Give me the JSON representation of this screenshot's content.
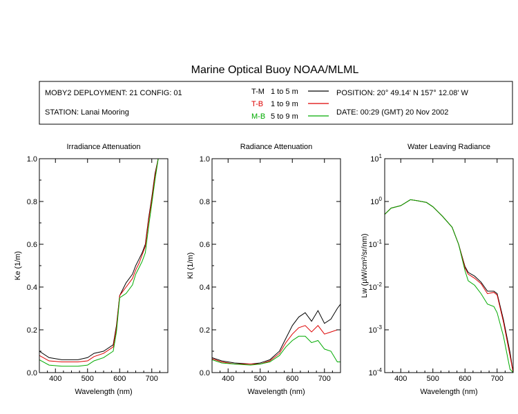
{
  "title": "Marine Optical Buoy NOAA/MLML",
  "info": {
    "deployment": "MOBY2 DEPLOYMENT: 21 CONFIG: 01",
    "station": "STATION: Lanai Mooring",
    "position": "POSITION: 20° 49.14' N   157° 12.08' W",
    "date": "DATE: 00:29 (GMT) 20 Nov 2002"
  },
  "legend": [
    {
      "code": "T-M",
      "range": "1 to 5  m",
      "color": "#000000"
    },
    {
      "code": "T-B",
      "range": "1 to 9  m",
      "color": "#dd0000"
    },
    {
      "code": "M-B",
      "range": "5 to 9  m",
      "color": "#00aa00"
    }
  ],
  "chart_data": [
    {
      "type": "line",
      "title": "Irradiance Attenuation",
      "xlabel": "Wavelength (nm)",
      "ylabel": "Ke  (1/m)",
      "xlim": [
        350,
        750
      ],
      "ylim": [
        0,
        1.0
      ],
      "xticks": [
        400,
        500,
        600,
        700
      ],
      "yticks": [
        0.0,
        0.2,
        0.4,
        0.6,
        0.8,
        1.0
      ],
      "yticklabels": [
        "0.0",
        "0.2",
        "0.4",
        "0.6",
        "0.8",
        "1.0"
      ],
      "x": [
        350,
        380,
        420,
        470,
        500,
        520,
        550,
        580,
        590,
        600,
        610,
        620,
        640,
        650,
        660,
        670,
        680,
        690,
        700,
        710,
        720
      ],
      "series": [
        {
          "name": "T-M",
          "color": "#000000",
          "values": [
            0.1,
            0.07,
            0.06,
            0.06,
            0.07,
            0.09,
            0.1,
            0.13,
            0.22,
            0.36,
            0.39,
            0.42,
            0.46,
            0.5,
            0.53,
            0.56,
            0.6,
            0.72,
            0.82,
            0.93,
            1.0
          ]
        },
        {
          "name": "T-B",
          "color": "#dd0000",
          "values": [
            0.08,
            0.055,
            0.05,
            0.05,
            0.055,
            0.075,
            0.09,
            0.12,
            0.21,
            0.36,
            0.38,
            0.4,
            0.44,
            0.48,
            0.51,
            0.55,
            0.59,
            0.71,
            0.81,
            0.92,
            1.0
          ]
        },
        {
          "name": "M-B",
          "color": "#00aa00",
          "values": [
            0.06,
            0.035,
            0.03,
            0.03,
            0.035,
            0.055,
            0.07,
            0.1,
            0.19,
            0.35,
            0.36,
            0.37,
            0.41,
            0.46,
            0.49,
            0.52,
            0.56,
            0.68,
            0.79,
            0.9,
            1.0
          ]
        }
      ]
    },
    {
      "type": "line",
      "title": "Radiance Attenuation",
      "xlabel": "Wavelength (nm)",
      "ylabel": "Kl  (1/m)",
      "xlim": [
        350,
        750
      ],
      "ylim": [
        0,
        1.0
      ],
      "xticks": [
        400,
        500,
        600,
        700
      ],
      "yticks": [
        0.0,
        0.2,
        0.4,
        0.6,
        0.8,
        1.0
      ],
      "yticklabels": [
        "0.0",
        "0.2",
        "0.4",
        "0.6",
        "0.8",
        "1.0"
      ],
      "x": [
        350,
        380,
        420,
        470,
        500,
        530,
        560,
        580,
        600,
        620,
        640,
        660,
        680,
        700,
        720,
        740,
        750
      ],
      "series": [
        {
          "name": "T-M",
          "color": "#000000",
          "values": [
            0.07,
            0.055,
            0.045,
            0.04,
            0.045,
            0.06,
            0.1,
            0.16,
            0.22,
            0.26,
            0.28,
            0.24,
            0.29,
            0.23,
            0.25,
            0.3,
            0.32
          ]
        },
        {
          "name": "T-B",
          "color": "#dd0000",
          "values": [
            0.065,
            0.05,
            0.04,
            0.04,
            0.04,
            0.055,
            0.09,
            0.14,
            0.18,
            0.21,
            0.22,
            0.19,
            0.22,
            0.18,
            0.19,
            0.2,
            0.2
          ]
        },
        {
          "name": "M-B",
          "color": "#00aa00",
          "values": [
            0.06,
            0.045,
            0.04,
            0.035,
            0.04,
            0.05,
            0.08,
            0.12,
            0.15,
            0.17,
            0.17,
            0.14,
            0.15,
            0.11,
            0.1,
            0.05,
            0.05
          ]
        }
      ]
    },
    {
      "type": "line",
      "title": "Water Leaving Radiance",
      "xlabel": "Wavelength (nm)",
      "ylabel": "Lw  (µW/cm²/sr/nm)",
      "xlim": [
        350,
        750
      ],
      "ylim": [
        0.0001,
        10
      ],
      "yscale": "log",
      "xticks": [
        400,
        500,
        600,
        700
      ],
      "ytick_exponents": [
        -4,
        -3,
        -2,
        -1,
        0,
        1
      ],
      "x": [
        350,
        370,
        400,
        430,
        450,
        480,
        500,
        530,
        560,
        580,
        600,
        610,
        630,
        650,
        670,
        690,
        700,
        720,
        740,
        750
      ],
      "series": [
        {
          "name": "T-M",
          "color": "#000000",
          "values": [
            0.5,
            0.7,
            0.8,
            1.1,
            1.05,
            0.95,
            0.75,
            0.45,
            0.25,
            0.1,
            0.03,
            0.022,
            0.018,
            0.013,
            0.008,
            0.008,
            0.007,
            0.0017,
            0.0003,
            0.0001
          ]
        },
        {
          "name": "T-B",
          "color": "#dd0000",
          "values": [
            0.5,
            0.7,
            0.8,
            1.1,
            1.05,
            0.95,
            0.75,
            0.45,
            0.25,
            0.1,
            0.028,
            0.02,
            0.016,
            0.012,
            0.007,
            0.0075,
            0.0065,
            0.0015,
            0.00025,
            0.0001
          ]
        },
        {
          "name": "M-B",
          "color": "#00aa00",
          "values": [
            0.5,
            0.7,
            0.8,
            1.1,
            1.05,
            0.95,
            0.75,
            0.45,
            0.25,
            0.1,
            0.024,
            0.014,
            0.011,
            0.007,
            0.004,
            0.0035,
            0.0025,
            0.0007,
            0.00012,
            0.0001
          ]
        }
      ]
    }
  ]
}
